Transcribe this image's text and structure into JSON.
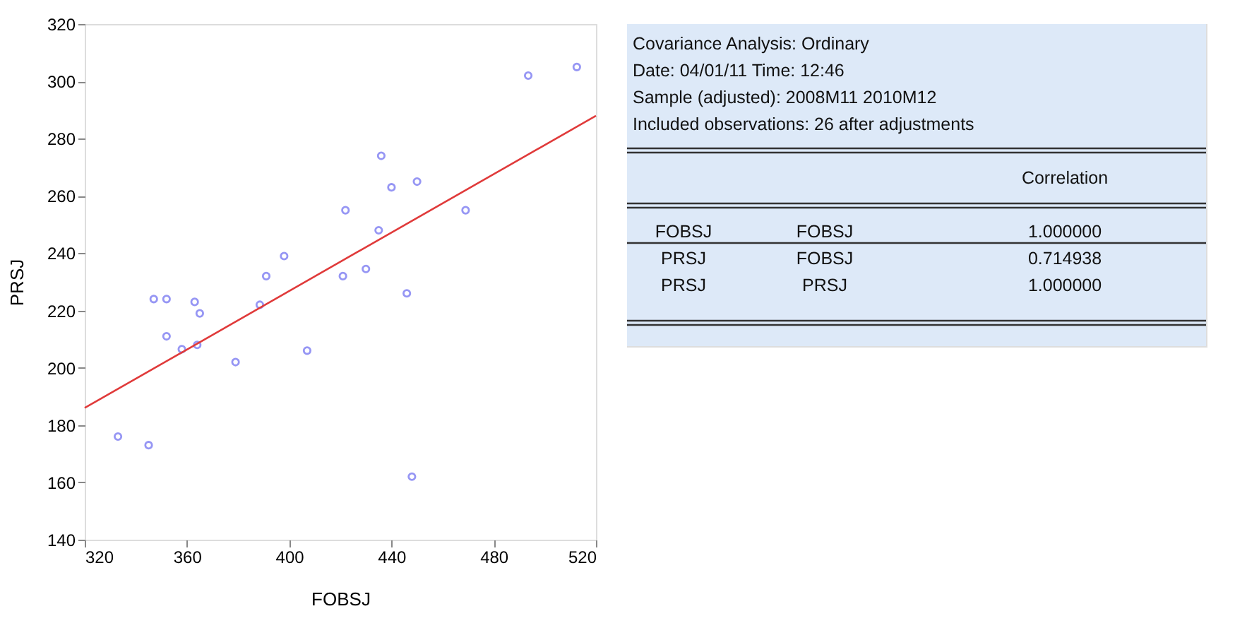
{
  "chart_data": [
    {
      "type": "scatter",
      "xlabel": "FOBSJ",
      "ylabel": "PRSJ",
      "xlim": [
        320,
        520
      ],
      "ylim": [
        140,
        320
      ],
      "xticks": [
        320,
        360,
        400,
        440,
        480,
        520
      ],
      "yticks": [
        140,
        160,
        180,
        200,
        220,
        240,
        260,
        280,
        300,
        320
      ],
      "grid": false,
      "series": [
        {
          "type": "scatter",
          "marker": "circle",
          "color": "#6b6bf0",
          "x": [
            436,
            422,
            435,
            398,
            391,
            421,
            430,
            347,
            352,
            363,
            365,
            388.5,
            352,
            358,
            364,
            379,
            407,
            333,
            345,
            493.5,
            512.5,
            440,
            450,
            469,
            446,
            448
          ],
          "values": [
            274,
            255,
            248,
            239,
            232,
            232,
            234.5,
            224,
            224,
            223,
            219,
            222,
            211,
            206.5,
            208,
            202,
            206,
            176,
            173,
            302,
            305,
            263,
            265,
            255,
            226,
            162
          ]
        },
        {
          "type": "line",
          "color": "#e03a3a",
          "x": [
            320,
            520
          ],
          "values": [
            186,
            288
          ]
        }
      ]
    },
    {
      "type": "other",
      "annotations": [
        "Covariance Analysis: Ordinary",
        "Date: 04/01/11   Time: 12:46",
        "Sample (adjusted): 2008M11 2010M12",
        "Included observations: 26 after adjustments",
        "Correlation",
        "FOBSJ",
        "FOBSJ",
        "1.000000",
        "PRSJ",
        "FOBSJ",
        "0.714938",
        "PRSJ",
        "PRSJ",
        "1.000000"
      ]
    }
  ]
}
